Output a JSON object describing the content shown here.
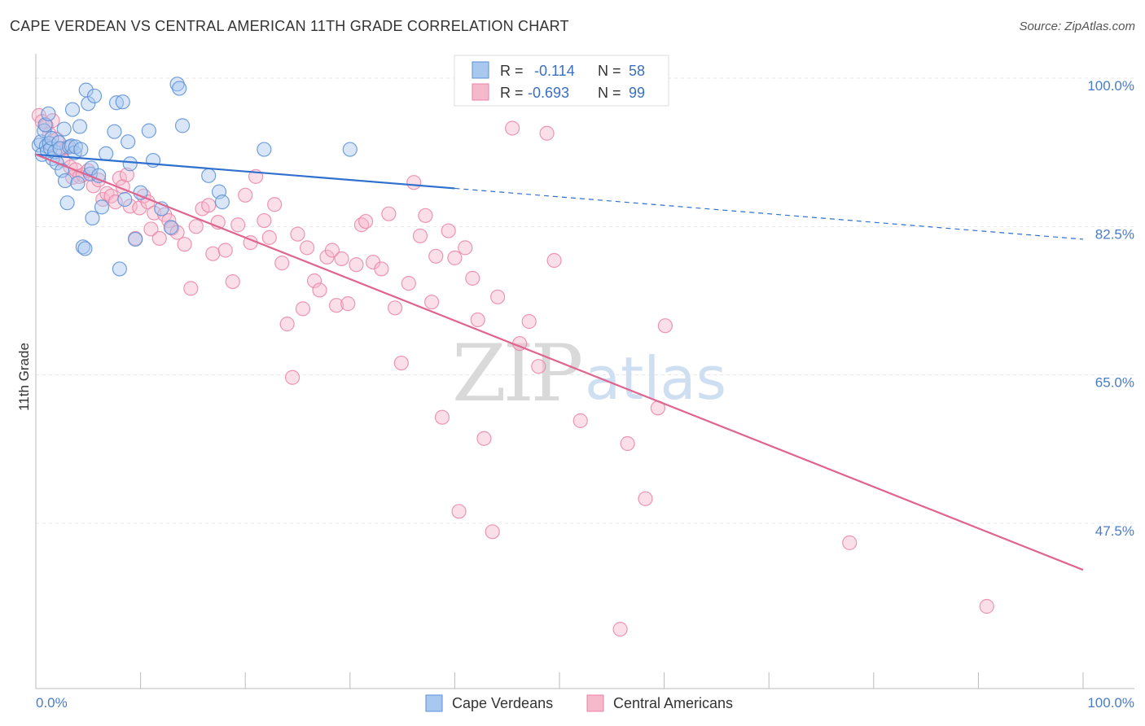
{
  "title": "CAPE VERDEAN VS CENTRAL AMERICAN 11TH GRADE CORRELATION CHART",
  "source": "Source: ZipAtlas.com",
  "watermark": {
    "zip": "ZIP",
    "atlas": "atlas"
  },
  "colors": {
    "blue_fill": "#a9c8f0",
    "blue_stroke": "#5b8fd6",
    "blue_line": "#2f6fce",
    "pink_fill": "#f6b8cb",
    "pink_stroke": "#e985a6",
    "pink_line": "#e0648f",
    "grid": "#e6e6e6",
    "axis": "#bbbbbb"
  },
  "stats": {
    "r_label": "R =",
    "n_label": "N =",
    "rows": [
      {
        "series": "Cape Verdeans",
        "r": "-0.114",
        "n": "58"
      },
      {
        "series": "Central Americans",
        "r": "-0.693",
        "n": "99"
      }
    ]
  },
  "chart_data": {
    "type": "scatter",
    "title": "CAPE VERDEAN VS CENTRAL AMERICAN 11TH GRADE CORRELATION CHART",
    "xlabel": "",
    "ylabel": "11th Grade",
    "xlim": [
      0,
      100
    ],
    "ylim": [
      30.5,
      102.5
    ],
    "x_tick_labels": {
      "left": "0.0%",
      "right": "100.0%"
    },
    "y_ticks": [
      {
        "value": 100,
        "label": "100.0%"
      },
      {
        "value": 82.5,
        "label": "82.5%"
      },
      {
        "value": 65,
        "label": "65.0%"
      },
      {
        "value": 47.5,
        "label": "47.5%"
      }
    ],
    "grid": true,
    "legend_position": "bottom-center",
    "series": [
      {
        "name": "Cape Verdeans",
        "color": "#a9c8f0",
        "trend": {
          "x": [
            0,
            40
          ],
          "y": [
            91.0,
            87.0
          ],
          "dashed_to": [
            100,
            81.0
          ]
        },
        "points": [
          [
            0.3,
            92.1
          ],
          [
            0.5,
            92.5
          ],
          [
            0.6,
            91.0
          ],
          [
            0.8,
            93.8
          ],
          [
            0.9,
            94.5
          ],
          [
            1.0,
            92.0
          ],
          [
            1.1,
            91.4
          ],
          [
            1.2,
            95.8
          ],
          [
            1.3,
            92.3
          ],
          [
            1.4,
            91.7
          ],
          [
            1.5,
            92.9
          ],
          [
            1.6,
            90.5
          ],
          [
            1.8,
            91.3
          ],
          [
            2.0,
            90.0
          ],
          [
            2.2,
            92.4
          ],
          [
            2.3,
            91.7
          ],
          [
            2.5,
            89.1
          ],
          [
            2.7,
            94.0
          ],
          [
            2.8,
            87.9
          ],
          [
            3.0,
            85.3
          ],
          [
            3.2,
            91.9
          ],
          [
            3.4,
            92.0
          ],
          [
            3.5,
            96.3
          ],
          [
            3.7,
            91.2
          ],
          [
            3.8,
            91.9
          ],
          [
            4.0,
            87.6
          ],
          [
            4.2,
            94.3
          ],
          [
            4.3,
            91.6
          ],
          [
            4.5,
            80.1
          ],
          [
            4.7,
            79.9
          ],
          [
            4.8,
            98.6
          ],
          [
            5.0,
            97.0
          ],
          [
            5.2,
            88.7
          ],
          [
            5.3,
            89.4
          ],
          [
            5.4,
            83.5
          ],
          [
            5.6,
            97.9
          ],
          [
            6.0,
            88.5
          ],
          [
            6.3,
            84.8
          ],
          [
            6.7,
            91.1
          ],
          [
            7.5,
            93.7
          ],
          [
            7.7,
            97.1
          ],
          [
            8.0,
            77.5
          ],
          [
            8.3,
            97.2
          ],
          [
            8.5,
            85.7
          ],
          [
            8.8,
            92.5
          ],
          [
            9.0,
            89.9
          ],
          [
            9.5,
            81.0
          ],
          [
            10.0,
            86.5
          ],
          [
            10.8,
            93.8
          ],
          [
            11.2,
            90.3
          ],
          [
            12.0,
            84.6
          ],
          [
            12.9,
            82.4
          ],
          [
            13.5,
            99.3
          ],
          [
            13.7,
            98.8
          ],
          [
            14.0,
            94.4
          ],
          [
            16.5,
            88.5
          ],
          [
            17.5,
            86.6
          ],
          [
            17.8,
            85.4
          ],
          [
            21.8,
            91.6
          ],
          [
            30.0,
            91.6
          ]
        ]
      },
      {
        "name": "Central Americans",
        "color": "#f6b8cb",
        "trend": {
          "x": [
            0,
            100
          ],
          "y": [
            91.0,
            42.0
          ]
        },
        "points": [
          [
            0.3,
            95.6
          ],
          [
            0.6,
            94.9
          ],
          [
            1.0,
            94.4
          ],
          [
            1.3,
            93.4
          ],
          [
            1.6,
            95.0
          ],
          [
            2.0,
            92.8
          ],
          [
            2.3,
            91.5
          ],
          [
            2.6,
            90.3
          ],
          [
            3.0,
            91.8
          ],
          [
            3.3,
            89.5
          ],
          [
            3.5,
            88.3
          ],
          [
            3.8,
            89.2
          ],
          [
            4.2,
            88.4
          ],
          [
            4.5,
            88.6
          ],
          [
            5.0,
            89.1
          ],
          [
            5.5,
            87.3
          ],
          [
            6.0,
            88.0
          ],
          [
            6.4,
            85.7
          ],
          [
            6.8,
            86.4
          ],
          [
            7.2,
            86.1
          ],
          [
            7.6,
            85.4
          ],
          [
            8.0,
            88.2
          ],
          [
            8.3,
            87.2
          ],
          [
            8.7,
            88.6
          ],
          [
            9.0,
            84.9
          ],
          [
            9.5,
            81.1
          ],
          [
            9.9,
            84.7
          ],
          [
            10.3,
            86.1
          ],
          [
            10.7,
            85.4
          ],
          [
            11.0,
            82.2
          ],
          [
            11.3,
            84.1
          ],
          [
            11.8,
            81.1
          ],
          [
            12.3,
            83.9
          ],
          [
            12.7,
            83.2
          ],
          [
            13.0,
            82.3
          ],
          [
            13.5,
            81.8
          ],
          [
            14.2,
            80.4
          ],
          [
            14.8,
            75.2
          ],
          [
            15.3,
            82.5
          ],
          [
            15.9,
            84.6
          ],
          [
            16.5,
            85.0
          ],
          [
            16.9,
            79.3
          ],
          [
            17.4,
            83.0
          ],
          [
            18.1,
            79.7
          ],
          [
            18.8,
            76.0
          ],
          [
            19.3,
            82.7
          ],
          [
            20.0,
            86.2
          ],
          [
            20.5,
            80.6
          ],
          [
            21.0,
            88.4
          ],
          [
            21.8,
            83.2
          ],
          [
            22.3,
            81.2
          ],
          [
            22.8,
            85.1
          ],
          [
            23.5,
            78.2
          ],
          [
            24.0,
            71.0
          ],
          [
            24.5,
            64.7
          ],
          [
            25.0,
            81.6
          ],
          [
            25.5,
            72.8
          ],
          [
            25.9,
            80.0
          ],
          [
            26.6,
            76.1
          ],
          [
            27.1,
            75.0
          ],
          [
            27.8,
            78.9
          ],
          [
            28.3,
            79.7
          ],
          [
            28.7,
            73.2
          ],
          [
            29.2,
            78.7
          ],
          [
            29.8,
            73.4
          ],
          [
            30.6,
            78.0
          ],
          [
            31.1,
            82.7
          ],
          [
            31.5,
            83.1
          ],
          [
            32.2,
            78.3
          ],
          [
            33.0,
            77.5
          ],
          [
            33.7,
            84.0
          ],
          [
            34.3,
            72.9
          ],
          [
            34.9,
            66.4
          ],
          [
            35.6,
            75.8
          ],
          [
            36.1,
            87.7
          ],
          [
            36.7,
            81.4
          ],
          [
            37.2,
            83.8
          ],
          [
            37.8,
            73.6
          ],
          [
            38.2,
            79.0
          ],
          [
            38.8,
            60.0
          ],
          [
            39.4,
            82.0
          ],
          [
            40.0,
            78.8
          ],
          [
            40.4,
            48.9
          ],
          [
            41.0,
            80.0
          ],
          [
            41.7,
            76.4
          ],
          [
            42.2,
            71.5
          ],
          [
            42.8,
            57.5
          ],
          [
            43.6,
            46.5
          ],
          [
            44.1,
            74.2
          ],
          [
            45.5,
            94.1
          ],
          [
            46.2,
            68.7
          ],
          [
            47.1,
            71.3
          ],
          [
            48.0,
            66.0
          ],
          [
            48.8,
            93.5
          ],
          [
            49.5,
            78.5
          ],
          [
            52.0,
            59.6
          ],
          [
            55.8,
            35.0
          ],
          [
            56.5,
            56.9
          ],
          [
            58.2,
            50.4
          ],
          [
            59.4,
            61.1
          ],
          [
            60.1,
            70.8
          ],
          [
            77.7,
            45.2
          ],
          [
            90.8,
            37.7
          ]
        ]
      }
    ]
  }
}
